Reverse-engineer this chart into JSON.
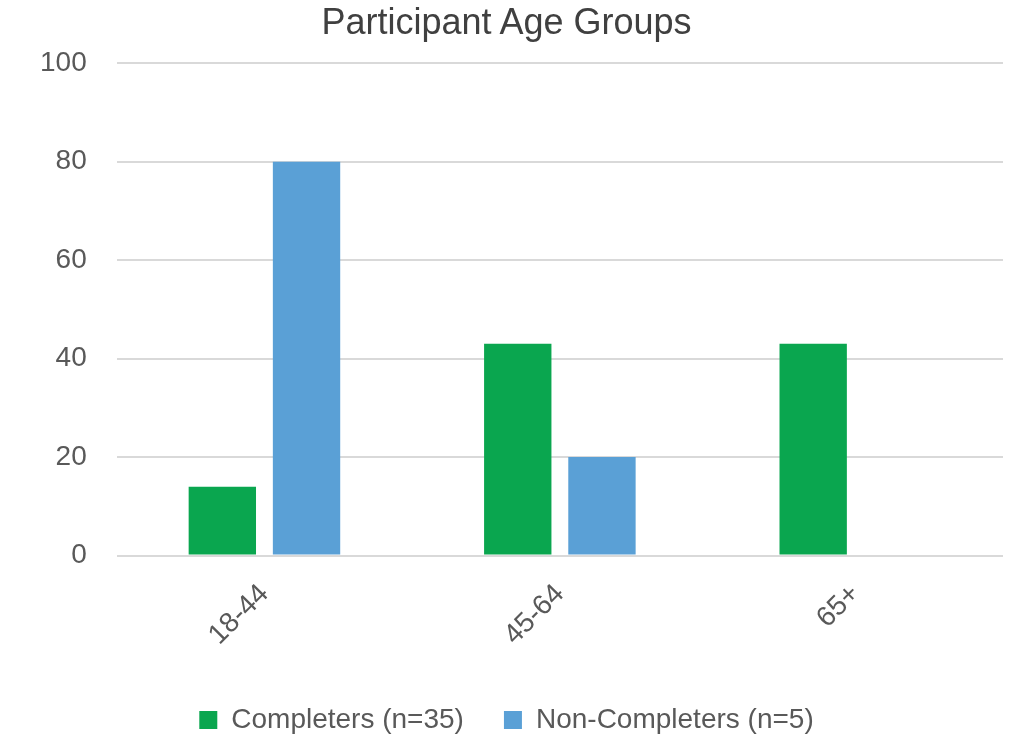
{
  "chart_data": {
    "type": "bar",
    "title": "Participant Age Groups",
    "categories": [
      "18-44",
      "45-64",
      "65+"
    ],
    "series": [
      {
        "name": "Completers (n=35)",
        "color": "#0aa64f",
        "values": [
          14,
          43,
          43
        ]
      },
      {
        "name": "Non-Completers (n=5)",
        "color": "#5aa0d6",
        "values": [
          80,
          20,
          0
        ]
      }
    ],
    "ylim": [
      0,
      100
    ],
    "yticks": [
      0,
      20,
      40,
      60,
      80,
      100
    ],
    "grid": "y",
    "legend": "bottom"
  }
}
